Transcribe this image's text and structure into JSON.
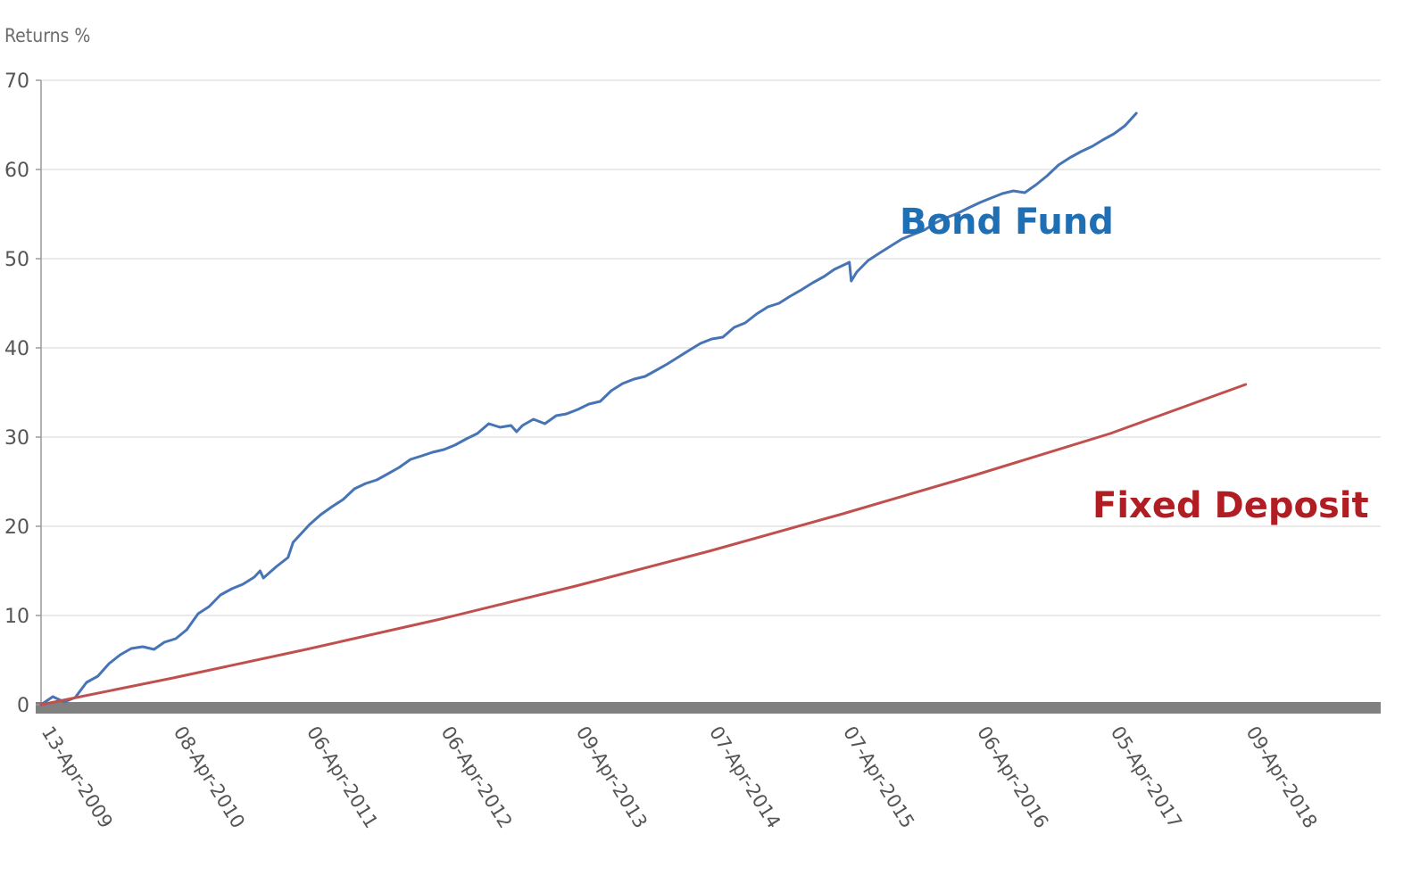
{
  "chart_data": {
    "type": "line",
    "title": "",
    "xlabel": "",
    "ylabel": "Returns %",
    "ylim": [
      0,
      70
    ],
    "yticks": [
      0,
      10,
      20,
      30,
      40,
      50,
      60,
      70
    ],
    "xlim": [
      "13-Apr-2009",
      "12-Apr-2019"
    ],
    "xticks": [
      "13-Apr-2009",
      "08-Apr-2010",
      "06-Apr-2011",
      "06-Apr-2012",
      "09-Apr-2013",
      "07-Apr-2014",
      "07-Apr-2015",
      "06-Apr-2016",
      "05-Apr-2017",
      "09-Apr-2018"
    ],
    "grid": true,
    "legend": "none",
    "series": [
      {
        "name": "Bond Fund",
        "color": "#4674b5",
        "label_color": "#1f6fb5",
        "points": [
          [
            "13-Apr-2009",
            0.0
          ],
          [
            "15-May-2009",
            0.9
          ],
          [
            "15-Jun-2009",
            0.3
          ],
          [
            "15-Jul-2009",
            0.8
          ],
          [
            "15-Aug-2009",
            2.5
          ],
          [
            "15-Sep-2009",
            3.2
          ],
          [
            "15-Oct-2009",
            4.6
          ],
          [
            "15-Nov-2009",
            5.6
          ],
          [
            "15-Dec-2009",
            6.3
          ],
          [
            "15-Jan-2010",
            6.5
          ],
          [
            "15-Feb-2010",
            6.2
          ],
          [
            "15-Mar-2010",
            7.0
          ],
          [
            "15-Apr-2010",
            7.4
          ],
          [
            "15-May-2010",
            8.4
          ],
          [
            "15-Jun-2010",
            10.2
          ],
          [
            "15-Jul-2010",
            11.0
          ],
          [
            "15-Aug-2010",
            12.3
          ],
          [
            "15-Sep-2010",
            13.0
          ],
          [
            "15-Oct-2010",
            13.5
          ],
          [
            "15-Nov-2010",
            14.3
          ],
          [
            "01-Dec-2010",
            15.0
          ],
          [
            "10-Dec-2010",
            14.2
          ],
          [
            "15-Jan-2011",
            15.5
          ],
          [
            "15-Feb-2011",
            16.5
          ],
          [
            "01-Mar-2011",
            18.2
          ],
          [
            "15-Apr-2011",
            20.2
          ],
          [
            "15-May-2011",
            21.3
          ],
          [
            "15-Jun-2011",
            22.2
          ],
          [
            "15-Jul-2011",
            23.0
          ],
          [
            "15-Aug-2011",
            24.2
          ],
          [
            "15-Sep-2011",
            24.8
          ],
          [
            "15-Oct-2011",
            25.2
          ],
          [
            "15-Nov-2011",
            25.9
          ],
          [
            "15-Dec-2011",
            26.6
          ],
          [
            "15-Jan-2012",
            27.5
          ],
          [
            "15-Feb-2012",
            27.9
          ],
          [
            "15-Mar-2012",
            28.3
          ],
          [
            "15-Apr-2012",
            28.6
          ],
          [
            "15-May-2012",
            29.1
          ],
          [
            "15-Jun-2012",
            29.8
          ],
          [
            "15-Jul-2012",
            30.4
          ],
          [
            "15-Aug-2012",
            31.5
          ],
          [
            "15-Sep-2012",
            31.1
          ],
          [
            "15-Oct-2012",
            31.3
          ],
          [
            "30-Oct-2012",
            30.6
          ],
          [
            "15-Nov-2012",
            31.3
          ],
          [
            "15-Dec-2012",
            32.0
          ],
          [
            "15-Jan-2013",
            31.5
          ],
          [
            "15-Feb-2013",
            32.4
          ],
          [
            "15-Mar-2013",
            32.6
          ],
          [
            "15-Apr-2013",
            33.1
          ],
          [
            "15-May-2013",
            33.7
          ],
          [
            "15-Jun-2013",
            34.0
          ],
          [
            "15-Jul-2013",
            35.2
          ],
          [
            "15-Aug-2013",
            36.0
          ],
          [
            "15-Sep-2013",
            36.5
          ],
          [
            "15-Oct-2013",
            36.8
          ],
          [
            "15-Nov-2013",
            37.5
          ],
          [
            "15-Dec-2013",
            38.2
          ],
          [
            "15-Jan-2014",
            39.0
          ],
          [
            "15-Feb-2014",
            39.8
          ],
          [
            "15-Mar-2014",
            40.5
          ],
          [
            "15-Apr-2014",
            41.0
          ],
          [
            "15-May-2014",
            41.2
          ],
          [
            "15-Jun-2014",
            42.3
          ],
          [
            "15-Jul-2014",
            42.8
          ],
          [
            "15-Aug-2014",
            43.8
          ],
          [
            "15-Sep-2014",
            44.6
          ],
          [
            "15-Oct-2014",
            45.0
          ],
          [
            "15-Nov-2014",
            45.8
          ],
          [
            "15-Dec-2014",
            46.5
          ],
          [
            "15-Jan-2015",
            47.3
          ],
          [
            "15-Feb-2015",
            48.0
          ],
          [
            "15-Mar-2015",
            48.8
          ],
          [
            "15-Apr-2015",
            49.4
          ],
          [
            "25-Apr-2015",
            49.6
          ],
          [
            "30-Apr-2015",
            47.5
          ],
          [
            "15-May-2015",
            48.5
          ],
          [
            "15-Jun-2015",
            49.8
          ],
          [
            "15-Jul-2015",
            50.6
          ],
          [
            "15-Aug-2015",
            51.4
          ],
          [
            "15-Sep-2015",
            52.2
          ],
          [
            "15-Oct-2015",
            52.7
          ],
          [
            "15-Nov-2015",
            53.2
          ],
          [
            "15-Dec-2015",
            54.0
          ],
          [
            "15-Jan-2016",
            54.6
          ],
          [
            "15-Feb-2016",
            55.1
          ],
          [
            "15-Mar-2016",
            55.7
          ],
          [
            "15-Apr-2016",
            56.3
          ],
          [
            "15-May-2016",
            56.8
          ],
          [
            "15-Jun-2016",
            57.3
          ],
          [
            "15-Jul-2016",
            57.6
          ],
          [
            "15-Aug-2016",
            57.4
          ],
          [
            "15-Sep-2016",
            58.3
          ],
          [
            "15-Oct-2016",
            59.3
          ],
          [
            "15-Nov-2016",
            60.5
          ],
          [
            "15-Dec-2016",
            61.3
          ],
          [
            "15-Jan-2017",
            62.0
          ],
          [
            "15-Feb-2017",
            62.6
          ],
          [
            "15-Mar-2017",
            63.3
          ],
          [
            "15-Apr-2017",
            64.0
          ],
          [
            "15-May-2017",
            64.9
          ],
          [
            "15-Jun-2017",
            66.3
          ]
        ]
      },
      {
        "name": "Fixed Deposit",
        "color": "#c0504d",
        "label_color": "#b01e24",
        "points": [
          [
            "13-Apr-2009",
            0.0
          ],
          [
            "08-Apr-2010",
            3.0
          ],
          [
            "06-Apr-2011",
            6.2
          ],
          [
            "06-Apr-2012",
            9.6
          ],
          [
            "09-Apr-2013",
            13.3
          ],
          [
            "07-Apr-2014",
            17.2
          ],
          [
            "07-Apr-2015",
            21.4
          ],
          [
            "06-Apr-2016",
            25.8
          ],
          [
            "05-Apr-2017",
            30.4
          ],
          [
            "09-Apr-2018",
            35.9
          ]
        ]
      }
    ]
  }
}
